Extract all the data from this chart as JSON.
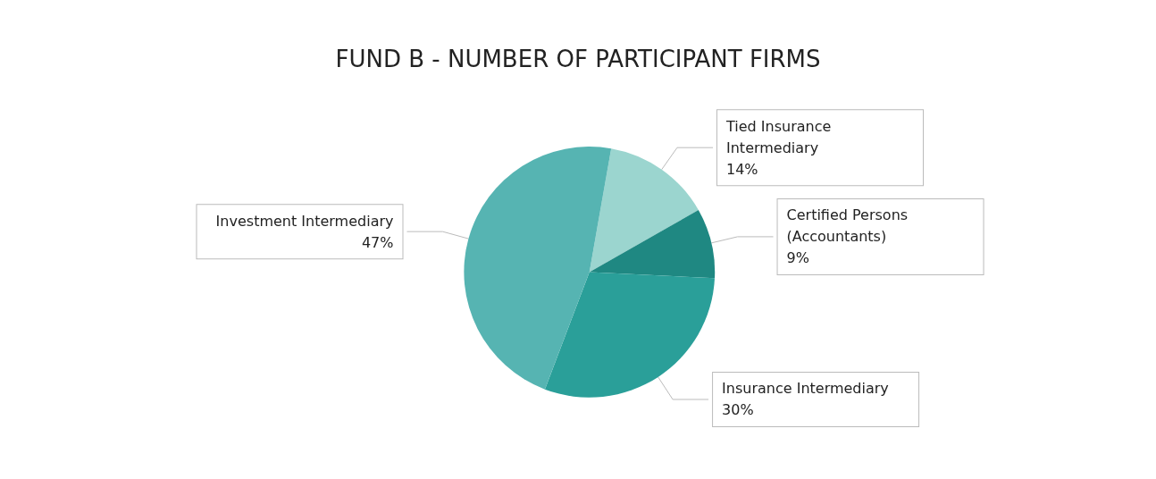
{
  "chart_data": {
    "type": "pie",
    "title": "FUND B - NUMBER OF PARTICIPANT FIRMS",
    "categories": [
      "Tied Insurance Intermediary",
      "Certified Persons (Accountants)",
      "Insurance Intermediary",
      "Investment Intermediary"
    ],
    "values": [
      14,
      9,
      30,
      47
    ],
    "value_labels": [
      "14%",
      "9%",
      "30%",
      "47%"
    ],
    "colors": [
      "#9bd5cf",
      "#1f8882",
      "#2a9f99",
      "#56b4b2"
    ],
    "legend": false
  }
}
